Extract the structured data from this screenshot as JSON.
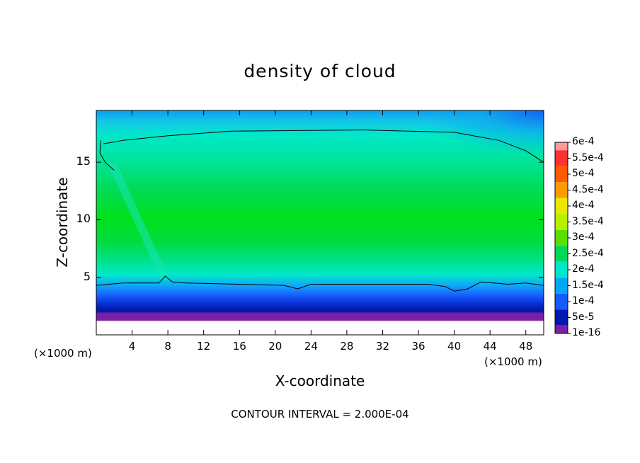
{
  "chart_data": {
    "type": "heatmap",
    "title": "density of cloud",
    "xlabel": "X-coordinate",
    "ylabel": "Z-coordinate",
    "x_unit_label": "(×1000 m)",
    "xlim": [
      0,
      50
    ],
    "ylim": [
      0,
      19.5
    ],
    "x_ticks": [
      4,
      8,
      12,
      16,
      20,
      24,
      28,
      32,
      36,
      40,
      44,
      48
    ],
    "y_ticks": [
      5,
      10,
      15
    ],
    "footer": "CONTOUR INTERVAL = 2.000E-04",
    "colorbar": {
      "labels": [
        "6e-4",
        "5.5e-4",
        "5e-4",
        "4.5e-4",
        "4e-4",
        "3.5e-4",
        "3e-4",
        "2.5e-4",
        "2e-4",
        "1.5e-4",
        "1e-4",
        "5e-5",
        "1e-16"
      ],
      "colors": [
        "#ff9a9a",
        "#ff3030",
        "#ff5a00",
        "#ff9a00",
        "#e8e800",
        "#b8f000",
        "#58e000",
        "#00d858",
        "#00e8c8",
        "#00a8f8",
        "#1858ff",
        "#0018b0",
        "#7a20a8"
      ]
    },
    "contour_lines": [
      {
        "level": "2e-4",
        "points": [
          [
            0.8,
            16.6
          ],
          [
            3,
            16.9
          ],
          [
            8,
            17.3
          ],
          [
            15,
            17.7
          ],
          [
            30,
            17.8
          ],
          [
            40,
            17.6
          ],
          [
            45,
            16.9
          ],
          [
            48,
            16.0
          ],
          [
            50,
            15.0
          ]
        ]
      },
      {
        "level": "2e-4",
        "points": [
          [
            0.5,
            16.9
          ],
          [
            0.4,
            15.8
          ],
          [
            1.0,
            15.0
          ],
          [
            2.0,
            14.3
          ]
        ]
      },
      {
        "level": "2e-4",
        "points": [
          [
            0,
            4.3
          ],
          [
            3,
            4.5
          ],
          [
            7,
            4.5
          ],
          [
            7.7,
            5.1
          ],
          [
            8.5,
            4.6
          ],
          [
            10,
            4.5
          ],
          [
            16,
            4.4
          ],
          [
            21,
            4.3
          ],
          [
            22.5,
            4.0
          ],
          [
            24,
            4.4
          ],
          [
            30,
            4.4
          ],
          [
            37,
            4.4
          ],
          [
            39,
            4.2
          ],
          [
            40,
            3.8
          ],
          [
            41.5,
            4.0
          ],
          [
            43,
            4.6
          ],
          [
            46,
            4.4
          ],
          [
            48,
            4.5
          ],
          [
            50,
            4.3
          ]
        ]
      }
    ]
  }
}
